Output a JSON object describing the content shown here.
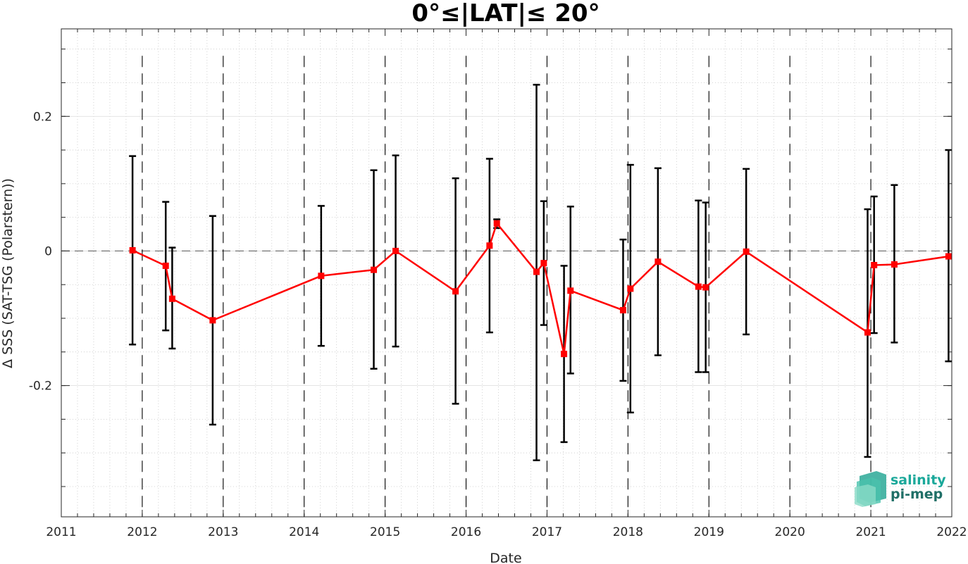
{
  "chart_data": {
    "type": "line",
    "title": "0°≤|LAT|≤ 20°",
    "xlabel": "Date",
    "ylabel": "Δ SSS (SAT-TSG (Polarstern))",
    "xlim": [
      2011.0,
      2022.0
    ],
    "ylim": [
      -0.395,
      0.33
    ],
    "x_ticks": [
      2011,
      2012,
      2013,
      2014,
      2015,
      2016,
      2017,
      2018,
      2019,
      2020,
      2021,
      2022
    ],
    "x_tick_labels": [
      "2011",
      "2012",
      "2013",
      "2014",
      "2015",
      "2016",
      "2017",
      "2018",
      "2019",
      "2020",
      "2021",
      "2022"
    ],
    "y_ticks": [
      -0.2,
      0,
      0.2
    ],
    "y_tick_labels": [
      "-0.2",
      "0",
      "0.2"
    ],
    "year_boundaries": [
      2012,
      2013,
      2014,
      2015,
      2016,
      2017,
      2018,
      2019,
      2020,
      2021
    ],
    "zero_line": 0,
    "grid": true,
    "minor_grid": true,
    "series": [
      {
        "color": "#ff0000",
        "errorbar_color": "#000000",
        "points": [
          {
            "x": 2011.88,
            "y": 0.001,
            "lo": -0.139,
            "hi": 0.141
          },
          {
            "x": 2012.29,
            "y": -0.022,
            "lo": -0.118,
            "hi": 0.073
          },
          {
            "x": 2012.37,
            "y": -0.071,
            "lo": -0.145,
            "hi": 0.005
          },
          {
            "x": 2012.87,
            "y": -0.103,
            "lo": -0.258,
            "hi": 0.052
          },
          {
            "x": 2014.21,
            "y": -0.037,
            "lo": -0.141,
            "hi": 0.067
          },
          {
            "x": 2014.86,
            "y": -0.028,
            "lo": -0.175,
            "hi": 0.12
          },
          {
            "x": 2015.13,
            "y": 0.0,
            "lo": -0.142,
            "hi": 0.142
          },
          {
            "x": 2015.87,
            "y": -0.06,
            "lo": -0.227,
            "hi": 0.108
          },
          {
            "x": 2016.29,
            "y": 0.008,
            "lo": -0.121,
            "hi": 0.137
          },
          {
            "x": 2016.38,
            "y": 0.041,
            "lo": 0.034,
            "hi": 0.047
          },
          {
            "x": 2016.87,
            "y": -0.031,
            "lo": -0.311,
            "hi": 0.247
          },
          {
            "x": 2016.96,
            "y": -0.018,
            "lo": -0.11,
            "hi": 0.074
          },
          {
            "x": 2017.21,
            "y": -0.153,
            "lo": -0.284,
            "hi": -0.022
          },
          {
            "x": 2017.29,
            "y": -0.059,
            "lo": -0.182,
            "hi": 0.066
          },
          {
            "x": 2017.94,
            "y": -0.088,
            "lo": -0.193,
            "hi": 0.017
          },
          {
            "x": 2018.03,
            "y": -0.056,
            "lo": -0.24,
            "hi": 0.128
          },
          {
            "x": 2018.37,
            "y": -0.016,
            "lo": -0.155,
            "hi": 0.123
          },
          {
            "x": 2018.87,
            "y": -0.053,
            "lo": -0.18,
            "hi": 0.075
          },
          {
            "x": 2018.96,
            "y": -0.054,
            "lo": -0.18,
            "hi": 0.072
          },
          {
            "x": 2019.46,
            "y": -0.001,
            "lo": -0.124,
            "hi": 0.122
          },
          {
            "x": 2020.96,
            "y": -0.121,
            "lo": -0.306,
            "hi": 0.062
          },
          {
            "x": 2021.04,
            "y": -0.021,
            "lo": -0.122,
            "hi": 0.081
          },
          {
            "x": 2021.29,
            "y": -0.02,
            "lo": -0.136,
            "hi": 0.098
          },
          {
            "x": 2021.96,
            "y": -0.008,
            "lo": -0.164,
            "hi": 0.15
          }
        ]
      }
    ]
  },
  "logo": {
    "line1": "salinity",
    "line2": "pi-mep",
    "color1": "#1aa89a",
    "color2": "#1f6f67"
  }
}
